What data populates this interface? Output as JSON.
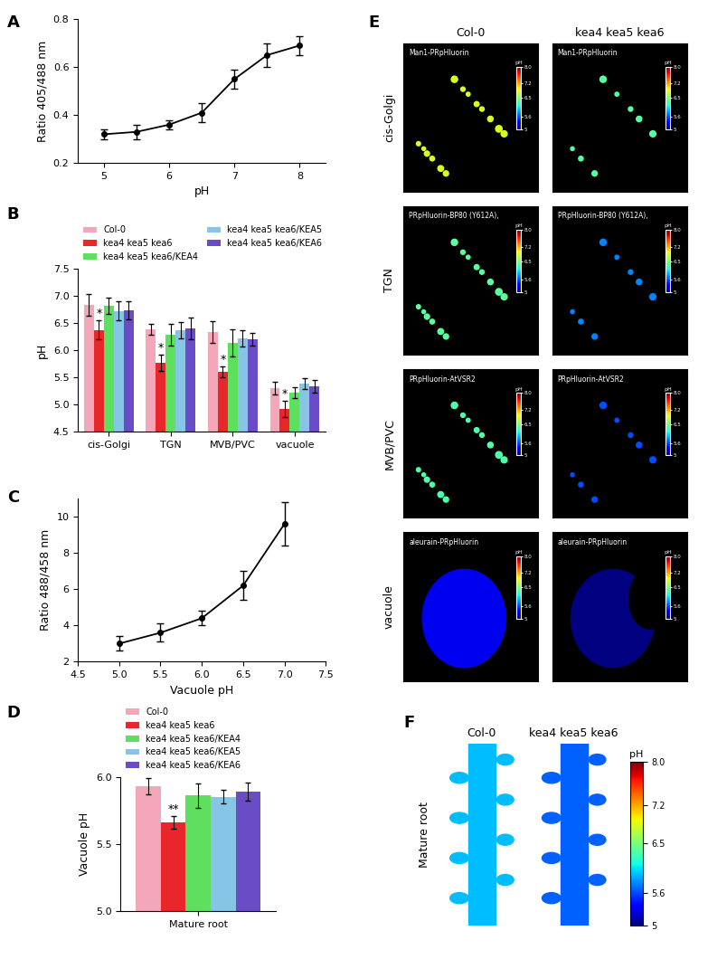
{
  "chart_data": [
    {
      "panel": "A",
      "type": "line",
      "x": [
        5,
        5.5,
        6,
        6.5,
        7,
        7.5,
        8
      ],
      "values": [
        0.32,
        0.33,
        0.36,
        0.41,
        0.55,
        0.65,
        0.69
      ],
      "errors": [
        0.02,
        0.03,
        0.02,
        0.04,
        0.04,
        0.05,
        0.04
      ],
      "xlim": [
        4.6,
        8.4
      ],
      "xticks": [
        5,
        6,
        7,
        8
      ],
      "ylim": [
        0.2,
        0.8
      ],
      "yticks": [
        0.2,
        0.4,
        0.6,
        0.8
      ],
      "xlabel": "pH",
      "ylabel": "Ratio 405/488 nm",
      "color": "#000000",
      "marker": "circle"
    },
    {
      "panel": "B",
      "type": "bar",
      "categories": [
        "cis-Golgi",
        "TGN",
        "MVB/PVC",
        "vacuole"
      ],
      "series": [
        {
          "name": "Col-0",
          "color": "#f4a7b9",
          "values": [
            6.83,
            6.38,
            6.33,
            5.3
          ],
          "errors": [
            0.2,
            0.1,
            0.2,
            0.12
          ]
        },
        {
          "name": "kea4 kea5 kea6",
          "color": "#e8272a",
          "values": [
            6.37,
            5.77,
            5.6,
            4.92
          ],
          "errors": [
            0.18,
            0.15,
            0.1,
            0.15
          ],
          "annotations": [
            "*",
            "*",
            "*",
            "*"
          ]
        },
        {
          "name": "kea4 kea5 kea6/KEA4",
          "color": "#5ee05e",
          "values": [
            6.82,
            6.28,
            6.13,
            5.22
          ],
          "errors": [
            0.15,
            0.2,
            0.25,
            0.1
          ]
        },
        {
          "name": "kea4 kea5 kea6/KEA5",
          "color": "#86c5e6",
          "values": [
            6.72,
            6.37,
            6.22,
            5.38
          ],
          "errors": [
            0.17,
            0.15,
            0.15,
            0.1
          ]
        },
        {
          "name": "kea4 kea5 kea6/KEA6",
          "color": "#6a4cc6",
          "values": [
            6.73,
            6.4,
            6.2,
            5.33
          ],
          "errors": [
            0.17,
            0.2,
            0.12,
            0.12
          ]
        }
      ],
      "ylim": [
        4.5,
        7.5
      ],
      "yticks": [
        4.5,
        {
          "value": 5,
          "label": "5.0"
        },
        5.5,
        {
          "value": 6,
          "label": "6.0"
        },
        6.5,
        {
          "value": 7,
          "label": "7.0"
        },
        7.5
      ],
      "ylabel": "pH",
      "legend": "lower left"
    },
    {
      "panel": "C",
      "type": "line",
      "x": [
        5,
        5.5,
        6,
        6.5,
        7
      ],
      "values": [
        3.0,
        3.6,
        4.4,
        6.2,
        9.6
      ],
      "errors": [
        0.4,
        0.5,
        0.4,
        0.8,
        1.2
      ],
      "xlim": [
        4.5,
        7.5
      ],
      "xticks": [
        4.5,
        {
          "value": 5,
          "label": "5.0"
        },
        5.5,
        {
          "value": 6,
          "label": "6.0"
        },
        6.5,
        {
          "value": 7,
          "label": "7.0"
        },
        7.5
      ],
      "ylim": [
        2,
        11
      ],
      "yticks": [
        2,
        4,
        6,
        8,
        10
      ],
      "xlabel": "Vacuole pH",
      "ylabel": "Ratio 488/458 nm",
      "color": "#000000",
      "marker": "circle"
    },
    {
      "panel": "D",
      "type": "bar",
      "categories": [
        "Mature root"
      ],
      "series": [
        {
          "name": "Col-0",
          "color": "#f4a7b9",
          "values": [
            5.93
          ],
          "errors": [
            0.06
          ]
        },
        {
          "name": "kea4 kea5 kea6",
          "color": "#e8272a",
          "values": [
            5.66
          ],
          "errors": [
            0.05
          ],
          "annotations": [
            "**"
          ]
        },
        {
          "name": "kea4 kea5 kea6/KEA4",
          "color": "#5ee05e",
          "values": [
            5.86
          ],
          "errors": [
            0.09
          ]
        },
        {
          "name": "kea4 kea5 kea6/KEA5",
          "color": "#86c5e6",
          "values": [
            5.85
          ],
          "errors": [
            0.05
          ]
        },
        {
          "name": "kea4 kea5 kea6/KEA6",
          "color": "#6a4cc6",
          "values": [
            5.89
          ],
          "errors": [
            0.07
          ]
        }
      ],
      "ylim": [
        5,
        6
      ],
      "yticks": [
        {
          "value": 5,
          "label": "5.0"
        },
        5.5,
        {
          "value": 6,
          "label": "6.0"
        }
      ],
      "ylabel": "Vacuole pH",
      "legend": "lower left"
    },
    {
      "panel": "E",
      "type": "image",
      "columns": [
        "Col-0",
        "kea4 kea5 kea6"
      ],
      "rows": [
        {
          "name": "cis-Golgi",
          "marker_label": "Man1-PRpHluorin",
          "ph": [
            6.83,
            6.37
          ],
          "marker": "dot"
        },
        {
          "name": "TGN",
          "marker_label": "PRpHluorin-BP80 (Y612A),",
          "ph": [
            6.38,
            5.77
          ],
          "marker": "dot"
        },
        {
          "name": "MVB/PVC",
          "marker_label": "PRpHluorin-AtVSR2",
          "ph": [
            6.33,
            5.6
          ],
          "marker": "dot"
        },
        {
          "name": "vacuole",
          "marker_label": "aleurain-PRpHluorin",
          "ph": [
            5.3,
            4.92
          ],
          "marker": "ellipse"
        }
      ],
      "colorbar": {
        "label": "pH",
        "lim": [
          5,
          8
        ],
        "ticks": [
          5,
          5.6,
          6.5,
          7.2,
          {
            "value": 8,
            "label": "8.0"
          }
        ]
      }
    },
    {
      "panel": "F",
      "type": "image",
      "columns": [
        "Col-0",
        "kea4 kea5 kea6"
      ],
      "rows": [
        {
          "name": "Mature root",
          "ph": [
            5.93,
            5.66
          ],
          "marker": "root"
        }
      ],
      "colorbar": {
        "label": "pH",
        "lim": [
          5,
          8
        ],
        "ticks": [
          5,
          5.6,
          6.5,
          7.2,
          {
            "value": 8,
            "label": "8.0"
          }
        ]
      }
    }
  ]
}
